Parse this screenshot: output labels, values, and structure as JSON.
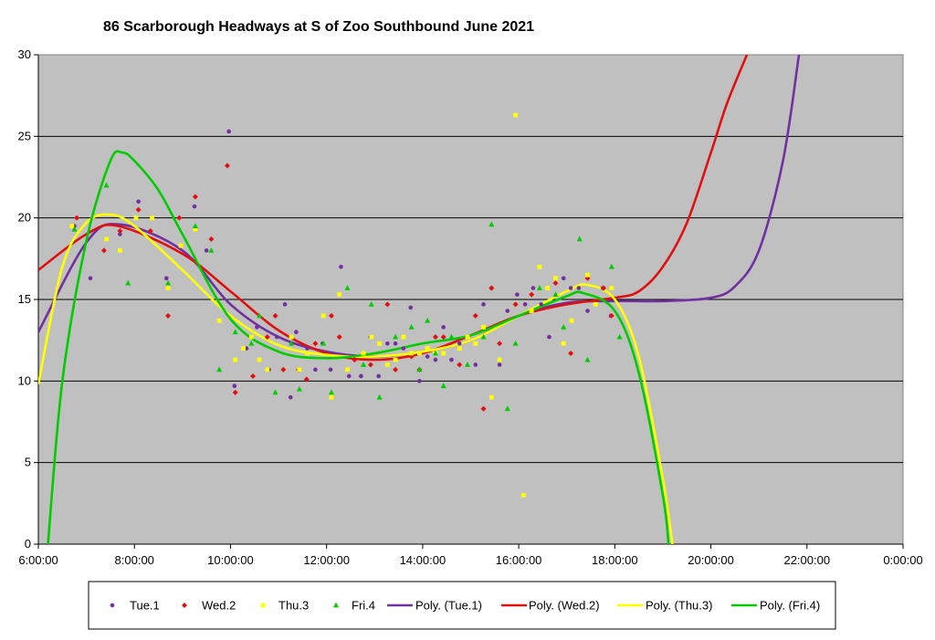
{
  "chart_data": {
    "type": "scatter",
    "title": "86 Scarborough Headways at S of Zoo Southbound June 2021",
    "xlabel": "",
    "ylabel": "",
    "xlim": [
      6,
      24
    ],
    "ylim": [
      0,
      30
    ],
    "x_ticks": [
      "6:00:00",
      "8:00:00",
      "10:00:00",
      "12:00:00",
      "14:00:00",
      "16:00:00",
      "18:00:00",
      "20:00:00",
      "22:00:00",
      "0:00:00"
    ],
    "y_ticks": [
      "0",
      "5",
      "10",
      "15",
      "20",
      "25",
      "30"
    ],
    "plot_background": "#c0c0c0",
    "gridlines": "horizontal",
    "legend_position": "bottom",
    "series": [
      {
        "name": "Tue.1",
        "color": "#7030a0",
        "marker": "circle",
        "x": [
          "6:45",
          "7:05",
          "7:42",
          "8:05",
          "8:40",
          "8:58",
          "9:15",
          "9:30",
          "9:58",
          "10:05",
          "10:20",
          "10:33",
          "10:48",
          "10:58",
          "11:08",
          "11:15",
          "11:22",
          "11:36",
          "11:46",
          "11:55",
          "12:05",
          "12:18",
          "12:28",
          "12:43",
          "12:55",
          "13:05",
          "13:16",
          "13:26",
          "13:36",
          "13:45",
          "13:56",
          "14:06",
          "14:16",
          "14:26",
          "14:36",
          "14:46",
          "15:06",
          "15:16",
          "15:26",
          "15:36",
          "15:46",
          "15:58",
          "16:08",
          "16:18",
          "16:28",
          "16:38",
          "16:56",
          "17:05",
          "17:15",
          "17:26",
          "17:45",
          "17:55"
        ],
        "y": [
          19.5,
          16.3,
          19.0,
          21.0,
          16.3,
          18.3,
          20.7,
          18.0,
          25.3,
          9.7,
          12.0,
          13.3,
          10.7,
          12.7,
          14.7,
          9.0,
          13.0,
          12.0,
          10.7,
          12.3,
          10.7,
          17.0,
          10.3,
          10.3,
          12.7,
          10.3,
          12.3,
          12.3,
          12.0,
          14.5,
          10.0,
          11.5,
          11.3,
          13.3,
          11.3,
          12.3,
          11.0,
          14.7,
          15.7,
          11.0,
          14.3,
          15.3,
          14.7,
          15.7,
          14.7,
          12.7,
          16.3,
          15.7,
          15.7,
          14.3,
          15.7,
          14.0
        ]
      },
      {
        "name": "Wed.2",
        "color": "#e01010",
        "marker": "diamond",
        "x": [
          "6:48",
          "7:22",
          "7:42",
          "8:05",
          "8:20",
          "8:42",
          "8:56",
          "9:16",
          "9:36",
          "9:56",
          "10:06",
          "10:28",
          "10:46",
          "10:56",
          "11:06",
          "11:25",
          "11:35",
          "11:46",
          "12:06",
          "12:16",
          "12:35",
          "12:55",
          "13:16",
          "13:26",
          "13:46",
          "13:56",
          "14:16",
          "14:26",
          "14:46",
          "15:06",
          "15:16",
          "15:26",
          "15:36",
          "15:56",
          "16:16",
          "16:46",
          "17:05",
          "17:26",
          "17:46",
          "17:56"
        ],
        "y": [
          20.0,
          18.0,
          19.2,
          20.5,
          19.2,
          14.0,
          20.0,
          21.3,
          18.7,
          23.2,
          9.3,
          10.3,
          12.7,
          14.0,
          10.7,
          10.7,
          10.1,
          12.3,
          14.0,
          12.7,
          11.3,
          11.0,
          14.7,
          10.7,
          11.5,
          10.7,
          12.7,
          12.7,
          11.0,
          14.0,
          8.3,
          15.7,
          12.3,
          14.7,
          15.3,
          16.0,
          11.7,
          16.3,
          15.7,
          14.0
        ]
      },
      {
        "name": "Thu.3",
        "color": "#ffff00",
        "marker": "square",
        "x": [
          "6:42",
          "7:25",
          "7:42",
          "8:02",
          "8:22",
          "8:42",
          "8:58",
          "9:16",
          "9:46",
          "10:06",
          "10:16",
          "10:26",
          "10:36",
          "10:46",
          "11:16",
          "11:26",
          "11:36",
          "11:56",
          "12:06",
          "12:16",
          "12:26",
          "12:46",
          "12:56",
          "13:06",
          "13:16",
          "13:26",
          "13:36",
          "13:46",
          "13:56",
          "14:06",
          "14:16",
          "14:26",
          "14:46",
          "14:56",
          "15:06",
          "15:16",
          "15:26",
          "15:36",
          "15:56",
          "16:06",
          "16:16",
          "16:26",
          "16:36",
          "16:46",
          "16:56",
          "17:06",
          "17:26",
          "17:36",
          "17:56"
        ],
        "y": [
          19.5,
          18.7,
          18.0,
          20.0,
          20.0,
          15.7,
          18.3,
          19.3,
          13.7,
          11.3,
          12.0,
          12.7,
          11.3,
          10.7,
          12.7,
          10.7,
          11.7,
          14.0,
          9.0,
          15.3,
          10.7,
          11.7,
          12.7,
          12.3,
          11.0,
          11.3,
          12.7,
          11.7,
          11.7,
          12.0,
          11.7,
          11.7,
          12.0,
          12.7,
          12.3,
          13.3,
          9.0,
          11.3,
          26.3,
          3.0,
          14.3,
          17.0,
          15.7,
          16.3,
          12.3,
          13.7,
          16.5,
          14.7,
          15.7
        ]
      },
      {
        "name": "Fri.4",
        "color": "#00cc00",
        "marker": "triangle",
        "x": [
          "6:45",
          "7:25",
          "7:52",
          "8:42",
          "9:16",
          "9:36",
          "9:46",
          "10:06",
          "10:26",
          "10:36",
          "10:56",
          "11:16",
          "11:26",
          "11:56",
          "12:06",
          "12:26",
          "12:46",
          "12:56",
          "13:06",
          "13:26",
          "13:46",
          "13:56",
          "14:06",
          "14:16",
          "14:26",
          "14:36",
          "14:56",
          "15:16",
          "15:26",
          "15:46",
          "15:56",
          "16:26",
          "16:46",
          "16:56",
          "17:16",
          "17:26",
          "17:56",
          "18:06"
        ],
        "y": [
          19.3,
          22.0,
          16.0,
          16.0,
          19.5,
          18.0,
          10.7,
          13.0,
          12.3,
          14.0,
          9.3,
          12.3,
          9.5,
          12.3,
          9.3,
          15.7,
          11.0,
          14.7,
          9.0,
          12.7,
          13.3,
          10.7,
          13.7,
          11.7,
          9.7,
          12.7,
          11.0,
          12.7,
          19.6,
          8.3,
          12.3,
          15.7,
          15.3,
          13.3,
          18.7,
          11.3,
          17.0,
          12.7
        ]
      }
    ],
    "trendlines": [
      {
        "name": "Poly. (Tue.1)",
        "color": "#7030a0",
        "x": [
          "6:00",
          "7:00",
          "7:42",
          "9:00",
          "10:00",
          "11:00",
          "12:00",
          "13:00",
          "14:00",
          "15:00",
          "16:00",
          "17:00",
          "18:00",
          "19:00",
          "20:00",
          "20:30",
          "21:00",
          "21:30",
          "21:50"
        ],
        "y": [
          13.0,
          18.5,
          19.6,
          18.0,
          14.7,
          12.7,
          11.8,
          11.5,
          11.8,
          12.5,
          14.0,
          14.8,
          14.9,
          14.9,
          15.1,
          15.8,
          18.0,
          23.5,
          30.0
        ]
      },
      {
        "name": "Poly. (Wed.2)",
        "color": "#e01010",
        "x": [
          "6:00",
          "7:00",
          "7:40",
          "9:00",
          "10:00",
          "11:00",
          "12:00",
          "13:00",
          "14:00",
          "15:00",
          "16:00",
          "17:00",
          "18:00",
          "18:30",
          "19:00",
          "19:30",
          "20:00",
          "20:20",
          "20:45"
        ],
        "y": [
          16.8,
          19.0,
          19.5,
          17.8,
          15.5,
          13.1,
          11.7,
          11.3,
          11.7,
          12.8,
          14.0,
          14.7,
          15.1,
          15.5,
          17.0,
          19.7,
          24.0,
          27.0,
          30.0
        ]
      },
      {
        "name": "Poly. (Thu.3)",
        "color": "#ffff00",
        "x": [
          "6:00",
          "6:30",
          "7:00",
          "7:30",
          "8:00",
          "9:00",
          "10:00",
          "11:00",
          "12:00",
          "13:00",
          "14:00",
          "15:00",
          "16:00",
          "17:00",
          "17:25",
          "18:00",
          "18:30",
          "19:00",
          "19:12"
        ],
        "y": [
          9.8,
          17.0,
          19.7,
          20.2,
          19.5,
          16.8,
          14.0,
          12.2,
          11.6,
          11.5,
          11.8,
          12.5,
          14.0,
          15.5,
          15.9,
          15.0,
          11.5,
          4.0,
          0.0
        ]
      },
      {
        "name": "Poly. (Fri.4)",
        "color": "#00cc00",
        "x": [
          "6:12",
          "6:30",
          "7:00",
          "7:30",
          "7:45",
          "8:00",
          "8:30",
          "9:00",
          "10:00",
          "11:00",
          "12:00",
          "13:00",
          "14:00",
          "15:00",
          "16:00",
          "17:00",
          "17:20",
          "18:00",
          "18:30",
          "19:00",
          "19:07"
        ],
        "y": [
          0.0,
          10.0,
          18.6,
          23.5,
          24.0,
          23.5,
          21.7,
          19.0,
          13.8,
          11.8,
          11.4,
          11.7,
          12.3,
          12.8,
          14.0,
          15.2,
          15.4,
          14.3,
          10.5,
          3.0,
          0.0
        ]
      }
    ]
  }
}
